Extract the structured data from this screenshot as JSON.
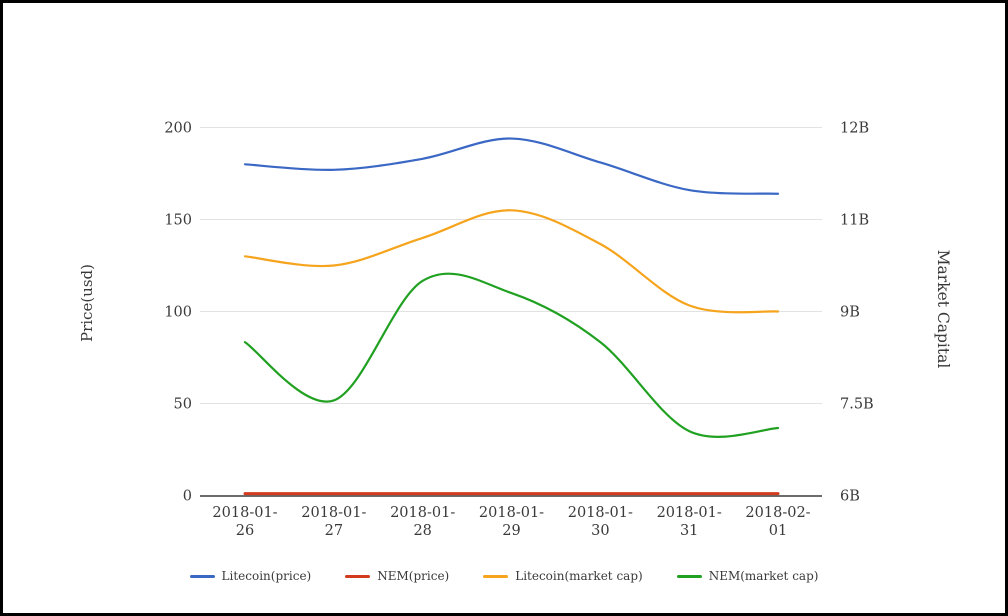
{
  "frame": {
    "background": "#ffffff",
    "border_color": "#000000"
  },
  "chart_data": {
    "type": "line",
    "smooth": true,
    "grid": true,
    "categories": [
      "2018-01-26",
      "2018-01-27",
      "2018-01-28",
      "2018-01-29",
      "2018-01-30",
      "2018-01-31",
      "2018-02-01"
    ],
    "x_tick_labels": [
      [
        "2018-01-",
        "26"
      ],
      [
        "2018-01-",
        "27"
      ],
      [
        "2018-01-",
        "28"
      ],
      [
        "2018-01-",
        "29"
      ],
      [
        "2018-01-",
        "30"
      ],
      [
        "2018-01-",
        "31"
      ],
      [
        "2018-02-",
        "01"
      ]
    ],
    "series": [
      {
        "name": "Litecoin(price)",
        "axis": "left",
        "color": "#3b68c5",
        "line_width": 2.2,
        "values": [
          180,
          177,
          183,
          194,
          181,
          166,
          164
        ]
      },
      {
        "name": "NEM(price)",
        "axis": "left",
        "color": "#d23b1e",
        "line_width": 3,
        "values": [
          1,
          1,
          1,
          1,
          1,
          1,
          1
        ]
      },
      {
        "name": "Litecoin(market cap)",
        "axis": "right",
        "color": "#f6a41d",
        "line_width": 2.2,
        "values": [
          9.9,
          9.75,
          10.2,
          10.65,
          10.1,
          9.1,
          9.0
        ],
        "unit": "billion USD"
      },
      {
        "name": "NEM(market cap)",
        "axis": "right",
        "color": "#21a121",
        "line_width": 2.2,
        "values": [
          8.5,
          7.55,
          9.5,
          9.3,
          8.5,
          7.05,
          7.1
        ],
        "unit": "billion USD"
      }
    ],
    "left_axis": {
      "title": "Price(usd)",
      "min": 0,
      "max": 200,
      "tick_values": [
        0,
        50,
        100,
        150,
        200
      ],
      "tick_labels": [
        "0",
        "50",
        "100",
        "150",
        "200"
      ]
    },
    "right_axis": {
      "title": "Market Capital",
      "min_billions": 6,
      "max_billions": 12,
      "tick_values_billions": [
        6,
        7.5,
        9,
        10.5,
        12
      ],
      "tick_labels": [
        "6B",
        "7.5B",
        "9B",
        "11B",
        "12B"
      ]
    },
    "legend": {
      "position": "bottom",
      "items": [
        "Litecoin(price)",
        "NEM(price)",
        "Litecoin(market cap)",
        "NEM(market cap)"
      ]
    },
    "colors": {
      "grid": "#e2e2e2",
      "axis_line": "#3c3c3c",
      "text": "#3a3a3a"
    }
  }
}
